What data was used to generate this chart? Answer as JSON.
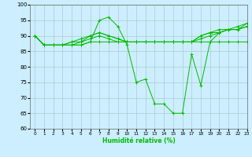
{
  "xlabel": "Humidité relative (%)",
  "background_color": "#cceeff",
  "grid_color": "#aacccc",
  "line_color": "#00bb00",
  "marker": "+",
  "xlim": [
    -0.5,
    23
  ],
  "ylim": [
    60,
    100
  ],
  "yticks": [
    60,
    65,
    70,
    75,
    80,
    85,
    90,
    95,
    100
  ],
  "xticks": [
    0,
    1,
    2,
    3,
    4,
    5,
    6,
    7,
    8,
    9,
    10,
    11,
    12,
    13,
    14,
    15,
    16,
    17,
    18,
    19,
    20,
    21,
    22,
    23
  ],
  "series": [
    [
      90,
      87,
      87,
      87,
      87,
      87,
      88,
      95,
      96,
      93,
      87,
      75,
      76,
      68,
      68,
      65,
      65,
      84,
      74,
      88,
      91,
      92,
      92,
      93
    ],
    [
      90,
      87,
      87,
      87,
      87,
      87,
      88,
      88,
      88,
      88,
      88,
      88,
      88,
      88,
      88,
      88,
      88,
      88,
      88,
      88,
      88,
      88,
      88,
      88
    ],
    [
      90,
      87,
      87,
      87,
      87,
      88,
      89,
      90,
      89,
      88,
      88,
      88,
      88,
      88,
      88,
      88,
      88,
      88,
      89,
      90,
      91,
      92,
      92,
      93
    ],
    [
      90,
      87,
      87,
      87,
      88,
      88,
      90,
      91,
      90,
      89,
      88,
      88,
      88,
      88,
      88,
      88,
      88,
      88,
      90,
      91,
      91,
      92,
      92,
      94
    ],
    [
      90,
      87,
      87,
      87,
      88,
      89,
      90,
      91,
      90,
      89,
      88,
      88,
      88,
      88,
      88,
      88,
      88,
      88,
      90,
      91,
      92,
      92,
      93,
      94
    ]
  ]
}
